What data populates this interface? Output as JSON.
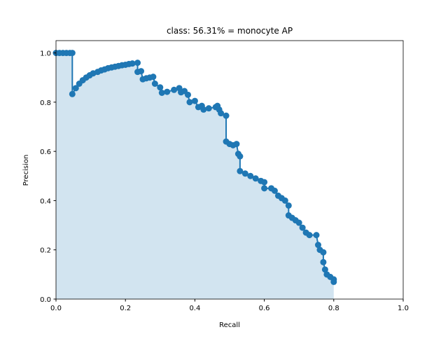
{
  "chart_data": {
    "type": "line",
    "title": "class: 56.31% = monocyte AP",
    "xlabel": "Recall",
    "ylabel": "Precision",
    "color": "#1f77b4",
    "fill_color": "#1f77b4",
    "x": [
      0.0,
      0.01,
      0.02,
      0.03,
      0.04,
      0.047,
      0.047,
      0.057,
      0.067,
      0.077,
      0.087,
      0.097,
      0.107,
      0.12,
      0.13,
      0.14,
      0.15,
      0.16,
      0.17,
      0.18,
      0.19,
      0.2,
      0.21,
      0.22,
      0.235,
      0.235,
      0.245,
      0.25,
      0.26,
      0.27,
      0.28,
      0.285,
      0.3,
      0.305,
      0.32,
      0.34,
      0.355,
      0.36,
      0.37,
      0.38,
      0.385,
      0.4,
      0.41,
      0.42,
      0.425,
      0.44,
      0.46,
      0.465,
      0.47,
      0.475,
      0.49,
      0.49,
      0.5,
      0.51,
      0.52,
      0.525,
      0.53,
      0.53,
      0.545,
      0.56,
      0.575,
      0.59,
      0.6,
      0.6,
      0.62,
      0.63,
      0.64,
      0.65,
      0.66,
      0.67,
      0.67,
      0.68,
      0.69,
      0.7,
      0.71,
      0.72,
      0.73,
      0.75,
      0.755,
      0.76,
      0.77,
      0.77,
      0.775,
      0.78,
      0.79,
      0.8,
      0.8
    ],
    "values": [
      1.0,
      1.0,
      1.0,
      1.0,
      1.0,
      1.0,
      0.833,
      0.857,
      0.875,
      0.889,
      0.9,
      0.909,
      0.917,
      0.923,
      0.929,
      0.933,
      0.938,
      0.941,
      0.944,
      0.947,
      0.95,
      0.952,
      0.955,
      0.957,
      0.96,
      0.923,
      0.926,
      0.893,
      0.897,
      0.9,
      0.903,
      0.875,
      0.86,
      0.838,
      0.842,
      0.85,
      0.857,
      0.84,
      0.845,
      0.83,
      0.8,
      0.805,
      0.78,
      0.785,
      0.77,
      0.775,
      0.78,
      0.785,
      0.77,
      0.755,
      0.745,
      0.64,
      0.63,
      0.625,
      0.63,
      0.59,
      0.58,
      0.52,
      0.51,
      0.5,
      0.49,
      0.48,
      0.475,
      0.45,
      0.45,
      0.44,
      0.42,
      0.41,
      0.4,
      0.38,
      0.34,
      0.33,
      0.32,
      0.31,
      0.29,
      0.27,
      0.26,
      0.26,
      0.22,
      0.2,
      0.19,
      0.15,
      0.12,
      0.1,
      0.09,
      0.08,
      0.07
    ],
    "xlim": [
      0,
      1
    ],
    "ylim": [
      0,
      1.05
    ],
    "xticks": [
      {
        "value": 0,
        "label": "0.0"
      },
      0.2,
      0.4,
      0.6,
      0.8,
      {
        "value": 1,
        "label": "1.0"
      }
    ],
    "yticks": [
      {
        "value": 0,
        "label": "0.0"
      },
      0.2,
      0.4,
      0.6,
      0.8,
      {
        "value": 1,
        "label": "1.0"
      }
    ]
  }
}
